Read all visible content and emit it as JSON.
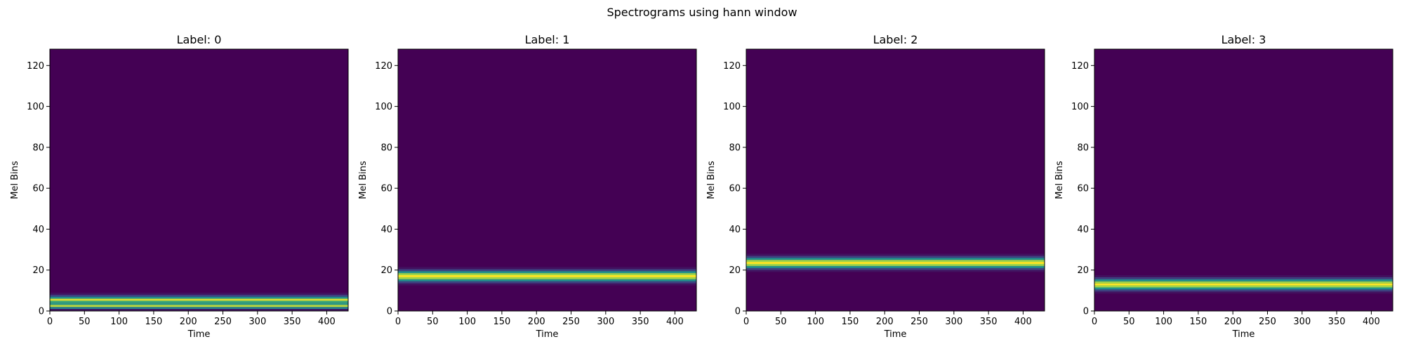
{
  "figure": {
    "title": "Spectrograms using hann window"
  },
  "chart_data": [
    {
      "type": "heatmap",
      "title": "Label: 0",
      "xlabel": "Time",
      "ylabel": "Mel Bins",
      "xlim": [
        0,
        431
      ],
      "ylim": [
        0,
        128
      ],
      "xticks": [
        0,
        50,
        100,
        150,
        200,
        250,
        300,
        350,
        400
      ],
      "yticks": [
        0,
        20,
        40,
        60,
        80,
        100,
        120
      ],
      "colormap": "viridis",
      "band": {
        "center_bin": 4.5,
        "width_bins": 8,
        "profile": [
          0.05,
          0.45,
          0.9,
          0.55,
          0.6,
          0.95,
          0.5,
          0.2,
          0.05
        ]
      }
    },
    {
      "type": "heatmap",
      "title": "Label: 1",
      "xlabel": "Time",
      "ylabel": "Mel Bins",
      "xlim": [
        0,
        431
      ],
      "ylim": [
        0,
        128
      ],
      "xticks": [
        0,
        50,
        100,
        150,
        200,
        250,
        300,
        350,
        400
      ],
      "yticks": [
        0,
        20,
        40,
        60,
        80,
        100,
        120
      ],
      "colormap": "viridis",
      "band": {
        "center_bin": 17,
        "width_bins": 8,
        "profile": [
          0.05,
          0.2,
          0.5,
          0.85,
          1.0,
          0.85,
          0.5,
          0.2,
          0.05
        ]
      }
    },
    {
      "type": "heatmap",
      "title": "Label: 2",
      "xlabel": "Time",
      "ylabel": "Mel Bins",
      "xlim": [
        0,
        431
      ],
      "ylim": [
        0,
        128
      ],
      "xticks": [
        0,
        50,
        100,
        150,
        200,
        250,
        300,
        350,
        400
      ],
      "yticks": [
        0,
        20,
        40,
        60,
        80,
        100,
        120
      ],
      "colormap": "viridis",
      "band": {
        "center_bin": 23.5,
        "width_bins": 8,
        "profile": [
          0.05,
          0.2,
          0.5,
          0.85,
          1.0,
          0.85,
          0.5,
          0.2,
          0.05
        ]
      }
    },
    {
      "type": "heatmap",
      "title": "Label: 3",
      "xlabel": "Time",
      "ylabel": "Mel Bins",
      "xlim": [
        0,
        431
      ],
      "ylim": [
        0,
        128
      ],
      "xticks": [
        0,
        50,
        100,
        150,
        200,
        250,
        300,
        350,
        400
      ],
      "yticks": [
        0,
        20,
        40,
        60,
        80,
        100,
        120
      ],
      "colormap": "viridis",
      "band": {
        "center_bin": 13,
        "width_bins": 8,
        "profile": [
          0.05,
          0.2,
          0.5,
          0.85,
          1.0,
          0.85,
          0.5,
          0.2,
          0.05
        ]
      }
    }
  ]
}
